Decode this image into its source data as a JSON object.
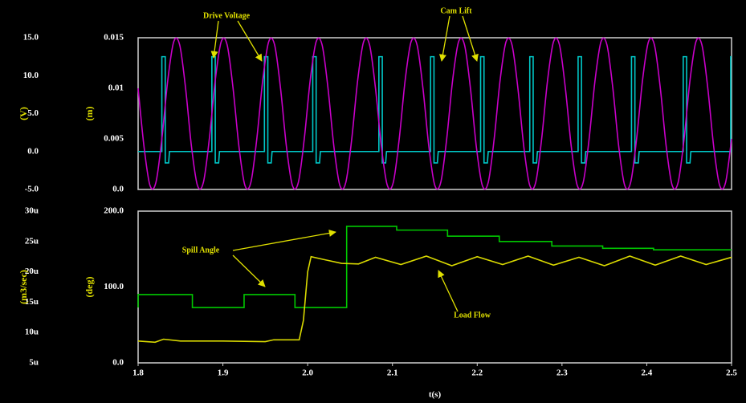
{
  "chart_data": [
    {
      "type": "line",
      "xlim": [
        1.8,
        2.5
      ],
      "ylabel": "(V)",
      "ylim": [
        -5,
        15
      ],
      "yticks": [
        {
          "value": 15,
          "label": "15.0"
        },
        {
          "value": 10,
          "label": "10.0"
        },
        {
          "value": 5,
          "label": "5.0"
        },
        {
          "value": 0,
          "label": "0.0"
        },
        {
          "value": -5,
          "label": "-5.0"
        }
      ],
      "y2label": "(m)",
      "y2lim": [
        0,
        0.015
      ],
      "y2ticks": [
        0.015,
        0.01,
        0.005,
        {
          "value": 0,
          "label": "0.0"
        }
      ],
      "annotations": [
        {
          "text": "Drive Voltage"
        },
        {
          "text": "Cam Lift"
        }
      ],
      "series": [
        {
          "name": "Drive Voltage",
          "color": "#00c8c8",
          "axis": "y",
          "x": [
            1.8,
            1.828,
            1.828,
            1.832,
            1.832,
            1.836,
            1.837,
            1.887,
            1.887,
            1.891,
            1.891,
            1.895,
            1.896,
            1.949,
            1.949,
            1.953,
            1.953,
            1.957,
            1.958,
            2.006,
            2.006,
            2.01,
            2.01,
            2.014,
            2.015,
            2.084,
            2.084,
            2.088,
            2.088,
            2.092,
            2.093,
            2.145,
            2.145,
            2.149,
            2.149,
            2.153,
            2.154,
            2.204,
            2.204,
            2.208,
            2.208,
            2.212,
            2.213,
            2.262,
            2.262,
            2.266,
            2.266,
            2.27,
            2.271,
            2.319,
            2.319,
            2.323,
            2.323,
            2.327,
            2.328,
            2.382,
            2.382,
            2.386,
            2.386,
            2.39,
            2.391,
            2.443,
            2.443,
            2.447,
            2.447,
            2.451,
            2.452,
            2.499,
            2.499,
            2.5
          ],
          "values": [
            0,
            0,
            12.5,
            12.5,
            -1.5,
            -1.5,
            0,
            0,
            12.5,
            12.5,
            -1.5,
            -1.5,
            0,
            0,
            12.5,
            12.5,
            -1.5,
            -1.5,
            0,
            0,
            12.5,
            12.5,
            -1.5,
            -1.5,
            0,
            0,
            12.5,
            12.5,
            -1.5,
            -1.5,
            0,
            0,
            12.5,
            12.5,
            -1.5,
            -1.5,
            0,
            0,
            12.5,
            12.5,
            -1.5,
            -1.5,
            0,
            0,
            12.5,
            12.5,
            -1.5,
            -1.5,
            0,
            0,
            12.5,
            12.5,
            -1.5,
            -1.5,
            0,
            0,
            12.5,
            12.5,
            -1.5,
            -1.5,
            0,
            0,
            12.5,
            12.5,
            -1.5,
            -1.5,
            0,
            0,
            12.5,
            12.5
          ]
        },
        {
          "name": "Cam Lift",
          "color": "#c800c8",
          "axis": "y2",
          "curve": "smooth",
          "x": [
            1.8,
            1.807,
            1.814,
            1.821,
            1.828,
            1.835,
            1.842,
            1.849,
            1.856,
            1.863,
            1.87,
            1.877,
            1.884,
            1.891,
            1.898,
            1.905,
            1.912,
            1.919,
            1.926,
            1.933,
            1.94,
            1.947,
            1.954,
            1.961,
            1.968,
            1.975,
            1.982,
            1.989,
            1.996,
            2.003,
            2.01,
            2.017,
            2.024,
            2.031,
            2.038,
            2.045,
            2.052,
            2.059,
            2.066,
            2.073,
            2.08,
            2.087,
            2.094,
            2.101,
            2.108,
            2.115,
            2.122,
            2.129,
            2.136,
            2.143,
            2.15,
            2.157,
            2.164,
            2.171,
            2.178,
            2.185,
            2.192,
            2.199,
            2.206,
            2.213,
            2.22,
            2.227,
            2.234,
            2.241,
            2.248,
            2.255,
            2.262,
            2.269,
            2.276,
            2.283,
            2.29,
            2.297,
            2.304,
            2.311,
            2.318,
            2.325,
            2.332,
            2.339,
            2.346,
            2.353,
            2.36,
            2.367,
            2.374,
            2.381,
            2.388,
            2.395,
            2.402,
            2.409,
            2.416,
            2.423,
            2.43,
            2.437,
            2.444,
            2.451,
            2.458,
            2.465,
            2.472,
            2.479,
            2.486,
            2.493,
            2.5
          ],
          "values": [
            0.01,
            0.0042,
            0.0004,
            0.0007,
            0.005,
            0.0108,
            0.0146,
            0.0143,
            0.01,
            0.0042,
            0.0004,
            0.0007,
            0.005,
            0.0108,
            0.0146,
            0.0143,
            0.01,
            0.0042,
            0.0004,
            0.0007,
            0.005,
            0.0108,
            0.0146,
            0.0143,
            0.01,
            0.0042,
            0.0004,
            0.0007,
            0.005,
            0.0108,
            0.0146,
            0.0143,
            0.01,
            0.0042,
            0.0004,
            0.0007,
            0.005,
            0.0108,
            0.0146,
            0.0143,
            0.01,
            0.0042,
            0.0004,
            0.0007,
            0.005,
            0.0108,
            0.0146,
            0.0143,
            0.01,
            0.0042,
            0.0004,
            0.0007,
            0.005,
            0.0108,
            0.0146,
            0.0143,
            0.01,
            0.0042,
            0.0004,
            0.0007,
            0.005,
            0.0108,
            0.0146,
            0.0143,
            0.01,
            0.0042,
            0.0004,
            0.0007,
            0.005,
            0.0108,
            0.0146,
            0.0143,
            0.01,
            0.0042,
            0.0004,
            0.0007,
            0.005,
            0.0108,
            0.0146,
            0.0143,
            0.01,
            0.0042,
            0.0004,
            0.0007,
            0.005,
            0.0108,
            0.0146,
            0.0143,
            0.01,
            0.0042,
            0.0004,
            0.0007,
            0.005,
            0.0108,
            0.0146,
            0.0143,
            0.01,
            0.0042,
            0.0004,
            0.0007,
            0.005
          ]
        }
      ]
    },
    {
      "type": "line",
      "xlabel": "t(s)",
      "xlim": [
        1.8,
        2.5
      ],
      "xticks": [
        1.8,
        1.9,
        {
          "value": 2,
          "label": "2.0"
        },
        2.1,
        2.2,
        2.3,
        2.4,
        2.5
      ],
      "ylabel": "(m3/sec)",
      "ylim": [
        5e-06,
        3e-05
      ],
      "yticks": [
        {
          "value": 3e-05,
          "label": "30u"
        },
        {
          "value": 2.5e-05,
          "label": "25u"
        },
        {
          "value": 2e-05,
          "label": "20u"
        },
        {
          "value": 1.5e-05,
          "label": "15u"
        },
        {
          "value": 1e-05,
          "label": "10u"
        },
        {
          "value": 5e-06,
          "label": "5u"
        }
      ],
      "y2label": "(deg)",
      "y2lim": [
        0,
        200
      ],
      "y2ticks": [
        {
          "value": 200,
          "label": "200.0"
        },
        {
          "value": 100,
          "label": "100.0"
        },
        {
          "value": 0,
          "label": "0.0"
        }
      ],
      "annotations": [
        {
          "text": "Spill Angle"
        },
        {
          "text": "Load Flow"
        }
      ],
      "series": [
        {
          "name": "Spill Angle",
          "color": "#00c800",
          "axis": "y2",
          "x": [
            1.8,
            1.8,
            1.864,
            1.864,
            1.925,
            1.925,
            1.985,
            1.985,
            2.046,
            2.046,
            2.105,
            2.105,
            2.165,
            2.165,
            2.226,
            2.226,
            2.288,
            2.288,
            2.348,
            2.348,
            2.408,
            2.408,
            2.5
          ],
          "values": [
            73,
            90,
            90,
            73,
            73,
            90,
            90,
            73,
            73,
            180,
            180,
            175,
            175,
            167,
            167,
            160,
            160,
            154,
            154,
            151,
            151,
            149,
            149
          ]
        },
        {
          "name": "Load Flow",
          "color": "#d8d800",
          "axis": "y",
          "x": [
            1.8,
            1.82,
            1.83,
            1.85,
            1.9,
            1.95,
            1.96,
            1.99,
            1.995,
            2.0,
            2.004,
            2.02,
            2.04,
            2.06,
            2.08,
            2.11,
            2.14,
            2.17,
            2.2,
            2.23,
            2.26,
            2.29,
            2.32,
            2.35,
            2.38,
            2.41,
            2.44,
            2.47,
            2.5
          ],
          "values": [
            8.6e-06,
            8.4e-06,
            8.9e-06,
            8.6e-06,
            8.6e-06,
            8.5e-06,
            8.8e-06,
            8.8e-06,
            1.2e-05,
            2e-05,
            2.25e-05,
            2.2e-05,
            2.14e-05,
            2.13e-05,
            2.24e-05,
            2.12e-05,
            2.26e-05,
            2.1e-05,
            2.25e-05,
            2.12e-05,
            2.26e-05,
            2.11e-05,
            2.24e-05,
            2.1e-05,
            2.26e-05,
            2.11e-05,
            2.26e-05,
            2.12e-05,
            2.24e-05
          ]
        }
      ]
    }
  ]
}
